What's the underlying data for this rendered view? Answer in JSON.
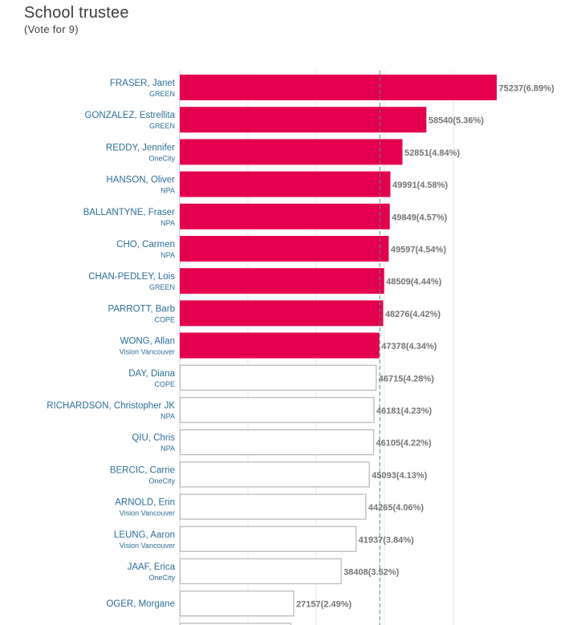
{
  "header": {
    "title": "School trustee",
    "subtitle": "(Vote for 9)"
  },
  "colors": {
    "elected_fill": "#e4004f",
    "other_fill": "#ffffff",
    "other_stroke": "#bbbbbb",
    "label_color": "#2b6e98",
    "value_color": "#747474",
    "gridline": "#e6e6e6",
    "threshold_line": "#3a9a82"
  },
  "chart_data": {
    "type": "bar",
    "orientation": "horizontal",
    "title": "School trustee",
    "subtitle": "(Vote for 9)",
    "seats": 9,
    "xlim": [
      0,
      75237
    ],
    "grid": true,
    "legend": "none",
    "threshold_value": 47378,
    "categories": [
      "FRASER, Janet",
      "GONZALEZ, Estrellita",
      "REDDY, Jennifer",
      "HANSON, Oliver",
      "BALLANTYNE, Fraser",
      "CHO, Carmen",
      "CHAN-PEDLEY, Lois",
      "PARROTT, Barb",
      "WONG, Allan",
      "DAY, Diana",
      "RICHARDSON, Christopher JK",
      "QIU, Chris",
      "BERCIC, Carrie",
      "ARNOLD, Erin",
      "LEUNG, Aaron",
      "JAAF, Erica",
      "OGER, Morgane"
    ],
    "parties": [
      "GREEN",
      "GREEN",
      "OneCity",
      "NPA",
      "NPA",
      "NPA",
      "GREEN",
      "COPE",
      "Vision Vancouver",
      "COPE",
      "NPA",
      "NPA",
      "OneCity",
      "Vision Vancouver",
      "Vision Vancouver",
      "OneCity",
      ""
    ],
    "values": [
      75237,
      58540,
      52851,
      49991,
      49849,
      49597,
      48509,
      48276,
      47378,
      46715,
      46181,
      46105,
      45093,
      44265,
      41937,
      38408,
      27157
    ],
    "value_labels": [
      "75237(6.89%)",
      "58540(5.36%)",
      "52851(4.84%)",
      "49991(4.58%)",
      "49849(4.57%)",
      "49597(4.54%)",
      "48509(4.44%)",
      "48276(4.42%)",
      "47378(4.34%)",
      "46715(4.28%)",
      "46181(4.23%)",
      "46105(4.22%)",
      "45093(4.13%)",
      "44265(4.06%)",
      "41937(3.84%)",
      "38408(3.52%)",
      "27157(2.49%)"
    ],
    "elected": [
      true,
      true,
      true,
      true,
      true,
      true,
      true,
      true,
      true,
      false,
      false,
      false,
      false,
      false,
      false,
      false,
      false
    ]
  }
}
